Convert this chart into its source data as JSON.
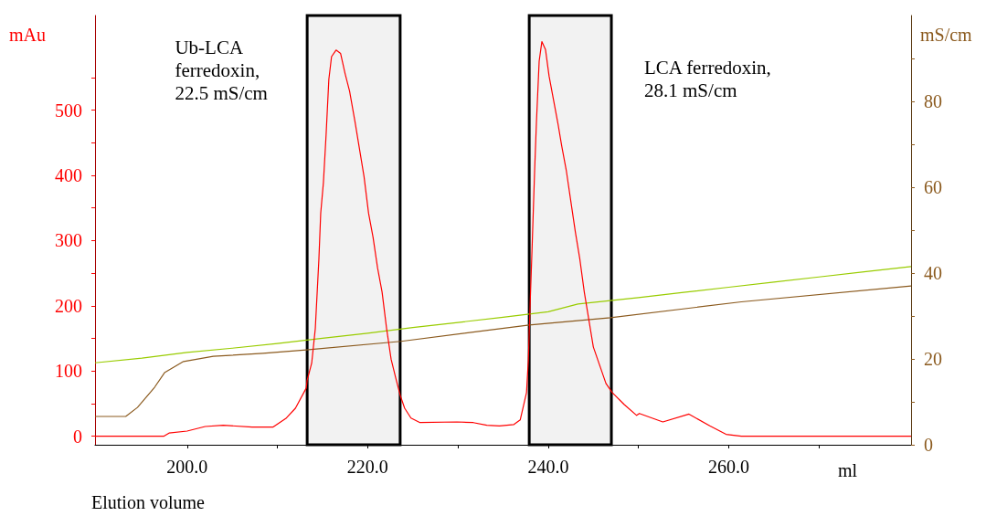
{
  "chart_data": {
    "type": "line",
    "xlabel": "Elution volume",
    "ylabel": "mAu",
    "y2label": "mS/cm",
    "annotations": [
      "ml"
    ],
    "xlim": [
      189.8,
      280.2
    ],
    "xticks": [
      {
        "value": 200,
        "label": "200.0"
      },
      {
        "value": 210,
        "label": null
      },
      {
        "value": 220,
        "label": "220.0"
      },
      {
        "value": 230,
        "label": null
      },
      {
        "value": 240,
        "label": "240.0"
      },
      {
        "value": 250,
        "label": null
      },
      {
        "value": 260,
        "label": "260.0"
      },
      {
        "value": 270,
        "label": null
      }
    ],
    "ylim": [
      -13,
      645
    ],
    "yticks": [
      0,
      {
        "value": 50,
        "label": null
      },
      100,
      {
        "value": 150,
        "label": null
      },
      200,
      {
        "value": 250,
        "label": null
      },
      300,
      {
        "value": 350,
        "label": null
      },
      400,
      {
        "value": 450,
        "label": null
      },
      500,
      {
        "value": 550,
        "label": null
      }
    ],
    "y2lim": [
      0,
      100
    ],
    "y2ticks": [
      0,
      {
        "value": 10,
        "label": null
      },
      20,
      {
        "value": 30,
        "label": null
      },
      40,
      {
        "value": 50,
        "label": null
      },
      60,
      {
        "value": 70,
        "label": null
      },
      80,
      {
        "value": 90,
        "label": null
      }
    ],
    "grid": false,
    "series": [
      {
        "color": "#ff0000",
        "x": [
          189.8,
          197.4,
          198.0,
          200.0,
          202.0,
          204.0,
          207.2,
          209.5,
          211.0,
          212.0,
          213.2,
          213.3,
          213.8,
          214.2,
          214.6,
          214.8,
          215.1,
          215.4,
          215.7,
          216.0,
          216.5,
          217.0,
          217.5,
          218.0,
          218.6,
          219.1,
          219.6,
          220.1,
          220.6,
          221.1,
          221.6,
          222.1,
          222.6,
          223.1,
          223.6,
          224.1,
          224.8,
          225.8,
          229.9,
          231.7,
          233.2,
          234.6,
          236.2,
          236.9,
          237.6,
          237.8,
          238.0,
          238.2,
          238.5,
          238.7,
          239.0,
          239.3,
          239.7,
          240.1,
          240.6,
          241.1,
          241.5,
          242.0,
          242.5,
          243.0,
          243.5,
          244.0,
          244.5,
          245.0,
          245.7,
          246.4,
          247.1,
          248.4,
          249.8,
          250.1,
          252.7,
          255.6,
          257.9,
          259.7,
          261.4,
          280.2
        ],
        "values": [
          0,
          0,
          5,
          8,
          15,
          17,
          14,
          14,
          28,
          43,
          74,
          86,
          112,
          165,
          272,
          342,
          389,
          463,
          547,
          582,
          592,
          587,
          556,
          529,
          482,
          440,
          398,
          342,
          305,
          258,
          221,
          165,
          118,
          90,
          63,
          43,
          28,
          21,
          22,
          21,
          17,
          16,
          18,
          25,
          67,
          116,
          203,
          282,
          408,
          482,
          575,
          605,
          593,
          552,
          515,
          478,
          445,
          408,
          361,
          314,
          272,
          221,
          179,
          137,
          109,
          81,
          67,
          49,
          32,
          35,
          22,
          34,
          16,
          3,
          0,
          0
        ]
      },
      {
        "color": "#8b5a1e",
        "axis": "y2",
        "x": [
          189.8,
          193.2,
          194.5,
          196.4,
          197.5,
          199.6,
          202.9,
          208.4,
          213.2,
          223.7,
          237.9,
          246.9,
          261.4,
          280.2
        ],
        "values": [
          6.6,
          6.6,
          8.7,
          13.4,
          16.8,
          19.4,
          20.6,
          21.3,
          22.1,
          24.1,
          27.9,
          29.6,
          33.3,
          37.0
        ]
      },
      {
        "color": "#99cc00",
        "axis": "y2",
        "x": [
          189.8,
          195,
          200,
          205,
          210,
          215,
          220,
          225,
          230,
          235,
          240,
          243.3,
          250,
          255,
          260,
          265,
          270,
          275,
          280.2
        ],
        "values": [
          19.1,
          20.2,
          21.5,
          22.5,
          23.6,
          24.8,
          26.0,
          27.3,
          28.5,
          29.7,
          31.0,
          32.8,
          34.3,
          35.5,
          36.7,
          37.9,
          39.1,
          40.3,
          41.5
        ]
      }
    ],
    "bands": [
      {
        "axis": "x",
        "from": 213.3,
        "to": 223.6,
        "label": "Ub-LCA ferredoxin, 22.5 mS/cm",
        "color": "#000000"
      },
      {
        "axis": "x",
        "from": 237.9,
        "to": 247.0,
        "label": "LCA ferredoxin, 28.1 mS/cm",
        "color": "#000000"
      }
    ]
  }
}
